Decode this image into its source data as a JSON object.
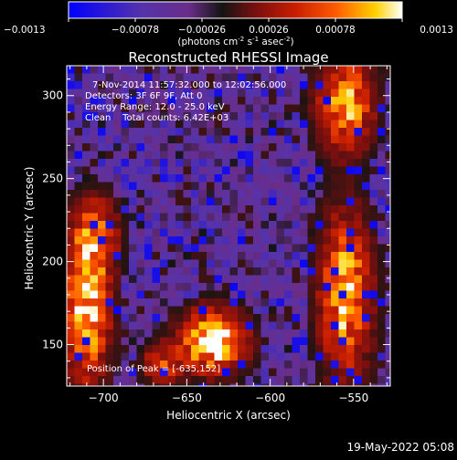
{
  "colors": {
    "background": "#000000",
    "foreground": "#ffffff",
    "colormap": [
      "#0000ff",
      "#5533aa",
      "#6a2d8a",
      "#141414",
      "#7a0f0f",
      "#c81e00",
      "#ff5a00",
      "#ffd100",
      "#ffffff"
    ]
  },
  "colorbar": {
    "ticks": [
      "-0.0013",
      "-0.00078",
      "-0.00026",
      "0.00026",
      "0.00078",
      "0.0013"
    ],
    "range": [
      -0.0013,
      0.0013
    ],
    "unit_parts": [
      "(photons cm",
      "-2",
      " s",
      "-1",
      " asec",
      "-2",
      ")"
    ]
  },
  "image": {
    "title": "Reconstructed RHESSI Image",
    "annotation_lines": [
      "7-Nov-2014 11:57:32.000 to 12:02:56.000",
      "Detectors: 3F 6F 9F, Att 0",
      "Energy Range: 12.0 - 25.0 keV",
      "Clean    Total counts: 6.42E+03"
    ],
    "peak_label": "Position of Peak = [-635,152]",
    "timestamp": "19-May-2022 05:08"
  },
  "chart_data": {
    "type": "heatmap",
    "title": "Reconstructed RHESSI Image",
    "xlabel": "Heliocentric X (arcsec)",
    "ylabel": "Heliocentric Y (arcsec)",
    "xlim": [
      -722,
      -528
    ],
    "ylim": [
      125,
      318
    ],
    "xticks": [
      -700,
      -650,
      -600,
      -550
    ],
    "yticks": [
      150,
      200,
      250,
      300
    ],
    "xtick_labels": [
      "−700",
      "−650",
      "−600",
      "−550"
    ],
    "ytick_labels": [
      "150",
      "200",
      "250",
      "300"
    ],
    "peak": {
      "x": -635,
      "y": 152
    },
    "grid": false,
    "bright_sources": [
      {
        "x": -635,
        "y": 152,
        "sx": 13,
        "sy": 12,
        "amp": 1.0
      },
      {
        "x": -710,
        "y": 170,
        "sx": 9,
        "sy": 28,
        "amp": 0.85
      },
      {
        "x": -705,
        "y": 215,
        "sx": 9,
        "sy": 15,
        "amp": 0.6
      },
      {
        "x": -555,
        "y": 180,
        "sx": 10,
        "sy": 32,
        "amp": 0.8
      },
      {
        "x": -555,
        "y": 295,
        "sx": 11,
        "sy": 18,
        "amp": 0.75
      },
      {
        "x": -665,
        "y": 138,
        "sx": 8,
        "sy": 8,
        "amp": 0.45
      }
    ]
  }
}
